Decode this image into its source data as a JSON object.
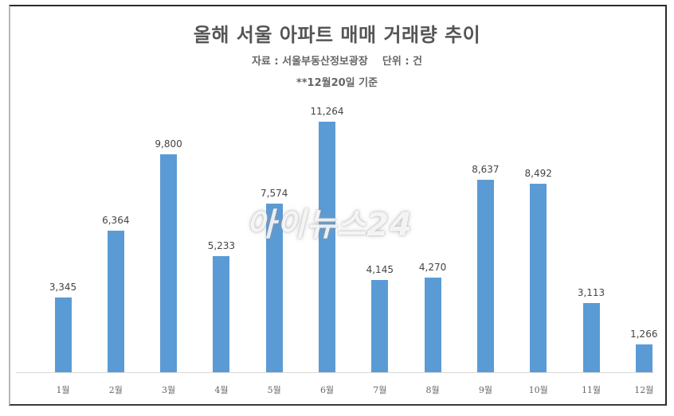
{
  "chart": {
    "title": "올해 서울 아파트 매매 거래량 추이",
    "subtitle": "자료 : 서울부동산정보광장    단위 : 건",
    "note": "**12월20일 기준",
    "watermark": "아이뉴스24",
    "bar_color": "#5b9bd5",
    "bars": [
      {
        "month": "1월",
        "value": 3345,
        "label": "3,345"
      },
      {
        "month": "2월",
        "value": 6364,
        "label": "6,364"
      },
      {
        "month": "3월",
        "value": 9800,
        "label": "9,800"
      },
      {
        "month": "4월",
        "value": 5233,
        "label": "5,233"
      },
      {
        "month": "5월",
        "value": 7574,
        "label": "7,574"
      },
      {
        "month": "6월",
        "value": 11264,
        "label": "11,264"
      },
      {
        "month": "7월",
        "value": 4145,
        "label": "4,145"
      },
      {
        "month": "8월",
        "value": 4270,
        "label": "4,270"
      },
      {
        "month": "9월",
        "value": 8637,
        "label": "8,637"
      },
      {
        "month": "10월",
        "value": 8492,
        "label": "8,492"
      },
      {
        "month": "11월",
        "value": 3113,
        "label": "3,113"
      },
      {
        "month": "12월",
        "value": 1266,
        "label": "1,266"
      }
    ]
  },
  "chart_data": {
    "type": "bar",
    "title": "올해 서울 아파트 매매 거래량 추이",
    "subtitle": "자료 : 서울부동산정보광장  단위 : 건",
    "annotation": "**12월20일 기준",
    "categories": [
      "1월",
      "2월",
      "3월",
      "4월",
      "5월",
      "6월",
      "7월",
      "8월",
      "9월",
      "10월",
      "11월",
      "12월"
    ],
    "values": [
      3345,
      6364,
      9800,
      5233,
      7574,
      11264,
      4145,
      4270,
      8637,
      8492,
      3113,
      1266
    ],
    "xlabel": "",
    "ylabel": "",
    "unit": "건",
    "data_labels": true,
    "grid": false,
    "legend": "none",
    "ylim": [
      0,
      11264
    ]
  }
}
